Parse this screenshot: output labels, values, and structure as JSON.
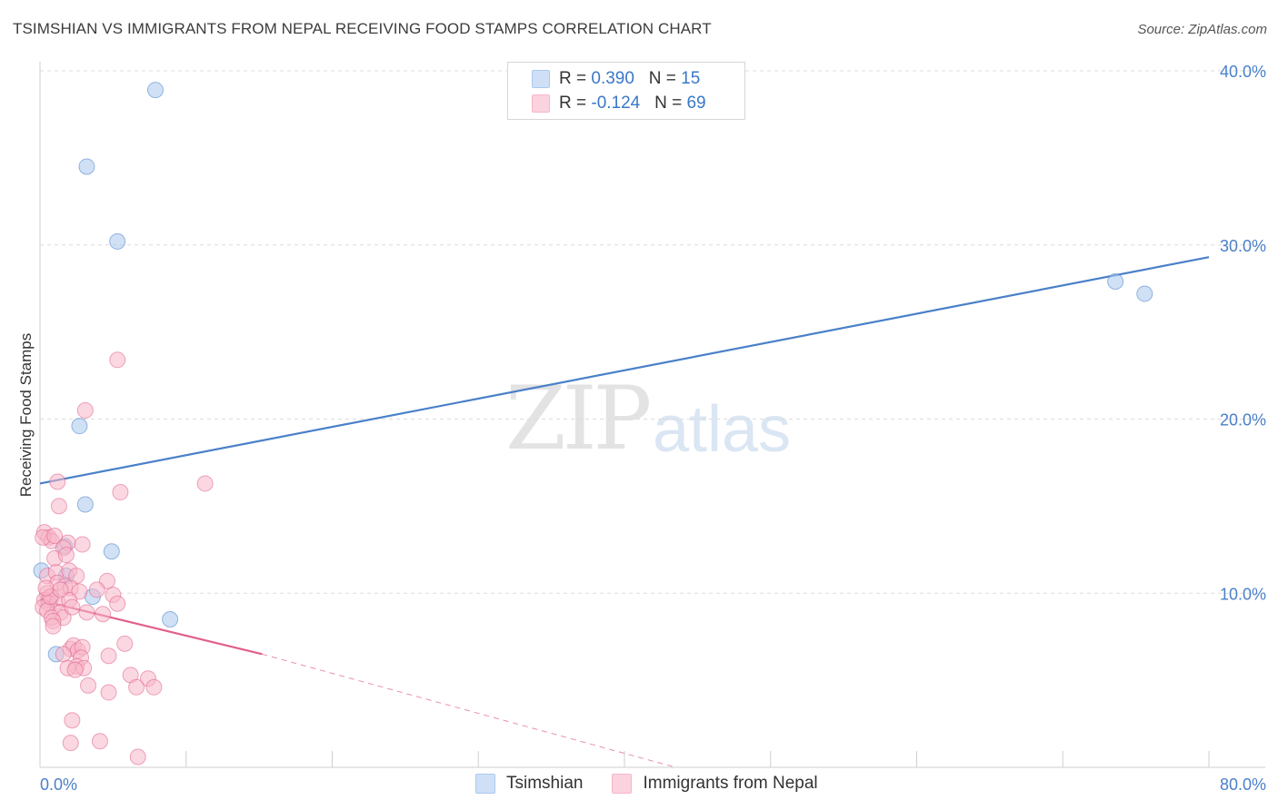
{
  "header": {
    "title": "TSIMSHIAN VS IMMIGRANTS FROM NEPAL RECEIVING FOOD STAMPS CORRELATION CHART",
    "source": "Source: ZipAtlas.com"
  },
  "watermark": {
    "zip": "ZIP",
    "atlas": "atlas"
  },
  "legend": {
    "rows": [
      {
        "r_label": "R = ",
        "r_value": "0.390",
        "n_label": "N = ",
        "n_value": "15",
        "color": "#a9c8ee"
      },
      {
        "r_label": "R = ",
        "r_value": "-0.124",
        "n_label": "N = ",
        "n_value": "69",
        "color": "#f7b6c8"
      }
    ]
  },
  "bottom_legend": {
    "items": [
      {
        "label": "Tsimshian",
        "color": "#a9c8ee"
      },
      {
        "label": "Immigrants from Nepal",
        "color": "#f7b6c8"
      }
    ]
  },
  "chart_data": {
    "type": "scatter",
    "title": "TSIMSHIAN VS IMMIGRANTS FROM NEPAL RECEIVING FOOD STAMPS CORRELATION CHART",
    "xlabel": "",
    "ylabel": "Receiving Food Stamps",
    "xlim": [
      0,
      80
    ],
    "ylim": [
      0,
      40
    ],
    "x_tick_labels": [
      "0.0%",
      "80.0%"
    ],
    "y_ticks": [
      10,
      20,
      30,
      40
    ],
    "y_tick_labels": [
      "10.0%",
      "20.0%",
      "30.0%",
      "40.0%"
    ],
    "grid": true,
    "legend_position": "top-center",
    "series": [
      {
        "name": "Tsimshian",
        "color": "#4a80c8",
        "fill": "#a9c8ee",
        "points": [
          [
            7.9,
            38.9
          ],
          [
            3.2,
            34.5
          ],
          [
            5.3,
            30.2
          ],
          [
            2.7,
            19.6
          ],
          [
            3.1,
            15.1
          ],
          [
            4.9,
            12.4
          ],
          [
            1.7,
            12.7
          ],
          [
            0.1,
            11.3
          ],
          [
            3.6,
            9.8
          ],
          [
            1.8,
            11.0
          ],
          [
            0.6,
            9.6
          ],
          [
            8.9,
            8.5
          ],
          [
            1.1,
            6.5
          ],
          [
            73.6,
            27.9
          ],
          [
            75.6,
            27.2
          ]
        ],
        "trend": {
          "x1": 0,
          "y1": 16.3,
          "x2": 80,
          "y2": 29.3,
          "style": "solid"
        }
      },
      {
        "name": "Immigrants from Nepal",
        "color": "#e0608a",
        "fill": "#f7b6c8",
        "points": [
          [
            5.3,
            23.4
          ],
          [
            3.1,
            20.5
          ],
          [
            11.3,
            16.3
          ],
          [
            1.2,
            16.4
          ],
          [
            5.5,
            15.8
          ],
          [
            1.3,
            15.0
          ],
          [
            0.3,
            13.5
          ],
          [
            0.6,
            13.2
          ],
          [
            0.8,
            13.0
          ],
          [
            1.9,
            12.9
          ],
          [
            2.9,
            12.8
          ],
          [
            1.6,
            12.6
          ],
          [
            1.0,
            12.0
          ],
          [
            1.8,
            12.2
          ],
          [
            0.5,
            11.0
          ],
          [
            1.1,
            11.2
          ],
          [
            2.0,
            11.3
          ],
          [
            2.5,
            11.0
          ],
          [
            4.6,
            10.7
          ],
          [
            1.2,
            10.6
          ],
          [
            1.7,
            10.4
          ],
          [
            2.1,
            10.3
          ],
          [
            2.7,
            10.1
          ],
          [
            0.5,
            10.0
          ],
          [
            0.8,
            9.8
          ],
          [
            3.9,
            10.2
          ],
          [
            5.0,
            9.9
          ],
          [
            0.3,
            9.6
          ],
          [
            0.6,
            9.4
          ],
          [
            1.2,
            9.5
          ],
          [
            2.0,
            9.6
          ],
          [
            0.2,
            9.2
          ],
          [
            0.5,
            9.0
          ],
          [
            1.4,
            8.9
          ],
          [
            3.2,
            8.9
          ],
          [
            0.8,
            8.6
          ],
          [
            1.6,
            8.6
          ],
          [
            4.3,
            8.8
          ],
          [
            0.9,
            8.4
          ],
          [
            0.9,
            8.1
          ],
          [
            5.3,
            9.4
          ],
          [
            2.1,
            6.8
          ],
          [
            2.3,
            7.0
          ],
          [
            2.6,
            6.7
          ],
          [
            2.9,
            6.9
          ],
          [
            5.8,
            7.1
          ],
          [
            1.6,
            6.5
          ],
          [
            2.8,
            6.3
          ],
          [
            4.7,
            6.4
          ],
          [
            2.5,
            5.8
          ],
          [
            3.0,
            5.7
          ],
          [
            1.9,
            5.7
          ],
          [
            2.4,
            5.6
          ],
          [
            6.2,
            5.3
          ],
          [
            7.4,
            5.1
          ],
          [
            3.3,
            4.7
          ],
          [
            6.6,
            4.6
          ],
          [
            7.8,
            4.6
          ],
          [
            4.7,
            4.3
          ],
          [
            2.2,
            2.7
          ],
          [
            4.1,
            1.5
          ],
          [
            2.1,
            1.4
          ],
          [
            6.7,
            0.6
          ],
          [
            0.2,
            13.2
          ],
          [
            1.0,
            13.3
          ],
          [
            0.7,
            9.8
          ],
          [
            1.4,
            10.2
          ],
          [
            2.2,
            9.2
          ],
          [
            0.4,
            10.3
          ]
        ],
        "trend": {
          "x1": 0,
          "y1": 9.6,
          "x2": 15.2,
          "y2": 6.5,
          "style": "solid",
          "ext_x2": 43.5,
          "ext_y2": 0.0,
          "ext_style": "dashed"
        }
      }
    ]
  }
}
